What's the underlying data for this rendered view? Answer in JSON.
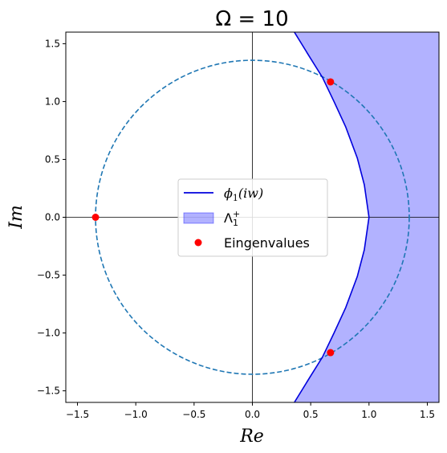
{
  "chart_data": {
    "type": "line",
    "title": "Ω = 10",
    "xlabel": "Re",
    "ylabel": "Im",
    "xlim": [
      -1.6,
      1.6
    ],
    "ylim": [
      -1.6,
      1.6
    ],
    "xticks": [
      -1.5,
      -1.0,
      -0.5,
      0.0,
      0.5,
      1.0,
      1.5
    ],
    "yticks": [
      -1.5,
      -1.0,
      -0.5,
      0.0,
      0.5,
      1.0,
      1.5
    ],
    "xtick_labels": [
      "−1.5",
      "−1.0",
      "−0.5",
      "0.0",
      "0.5",
      "1.0",
      "1.5"
    ],
    "ytick_labels": [
      "−1.5",
      "−1.0",
      "−0.5",
      "0.0",
      "0.5",
      "1.0",
      "1.5"
    ],
    "grid": false,
    "legend_position": "center",
    "circle": {
      "center": [
        0.0,
        0.0
      ],
      "radius": 1.345,
      "style": "dashed",
      "color": "#1f77b4"
    },
    "curve": {
      "name": "ϕ₁(iw)",
      "color": "#0000dd",
      "points": [
        [
          0.36,
          -1.6
        ],
        [
          0.5,
          -1.37
        ],
        [
          0.6,
          -1.21
        ],
        [
          0.7,
          -1.0
        ],
        [
          0.8,
          -0.78
        ],
        [
          0.9,
          -0.51
        ],
        [
          0.96,
          -0.28
        ],
        [
          1.0,
          0.0
        ],
        [
          0.96,
          0.28
        ],
        [
          0.9,
          0.51
        ],
        [
          0.8,
          0.78
        ],
        [
          0.7,
          1.0
        ],
        [
          0.6,
          1.21
        ],
        [
          0.5,
          1.37
        ],
        [
          0.36,
          1.6
        ]
      ]
    },
    "region": {
      "name": "Λ₁⁺",
      "color": "#0000ff",
      "alpha": 0.3
    },
    "eigenvalues": {
      "name": "Eingenvalues",
      "color": "#ff0000",
      "points": [
        [
          -1.345,
          0.0
        ],
        [
          0.67,
          1.17
        ],
        [
          0.67,
          -1.17
        ]
      ]
    },
    "legend": {
      "curve_label_main": "ϕ",
      "curve_label_sub": "1",
      "curve_label_rest": "(iw)",
      "region_label_main": "Λ",
      "region_label_sub": "1",
      "region_label_sup": "+",
      "eigen_label": "Eingenvalues"
    }
  }
}
